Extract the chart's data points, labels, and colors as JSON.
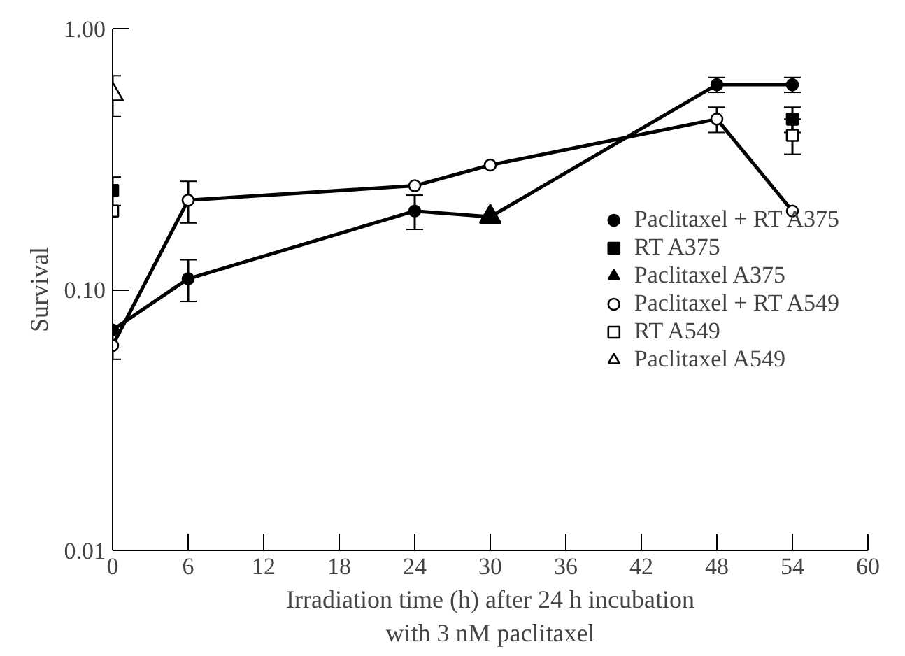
{
  "chart_data": {
    "type": "line",
    "xlabel": "Irradiation time (h) after 24 h incubation\nwith 3 nM paclitaxel",
    "ylabel": "Survival",
    "log": "y",
    "xlim": [
      0,
      60
    ],
    "xticks": [
      0,
      6,
      12,
      18,
      24,
      30,
      36,
      42,
      48,
      54,
      60
    ],
    "ylim": [
      0.01,
      1
    ],
    "yticks": [
      {
        "value": 0.01,
        "label": "0.01"
      },
      {
        "value": 0.1,
        "label": "0.10"
      },
      {
        "value": 1,
        "label": "1.00"
      }
    ],
    "grid": false,
    "legend": "right",
    "series": [
      {
        "name": "Paclitaxel + RT A375",
        "marker": "circle",
        "color": "#000000",
        "x": [
          0,
          6,
          24,
          30,
          48,
          54
        ],
        "values": [
          0.07,
          0.11,
          0.2,
          0.19,
          0.61,
          0.61
        ],
        "errors": [
          null,
          0.02,
          0.03,
          null,
          0.04,
          0.04
        ]
      },
      {
        "name": "RT A375",
        "type": "scatter",
        "marker": "square",
        "color": "#000000",
        "x": [
          0,
          54
        ],
        "values": [
          0.24,
          0.45
        ],
        "errors": [
          0.03,
          0.05
        ]
      },
      {
        "name": "Paclitaxel A375",
        "type": "scatter",
        "marker": "triangle",
        "color": "#000000",
        "x": [
          30
        ],
        "values": [
          0.19
        ],
        "errors": [
          null
        ]
      },
      {
        "name": "Paclitaxel + RT A549",
        "marker": "circle",
        "color": "#ffffff",
        "x": [
          0,
          6,
          24,
          30,
          48,
          54
        ],
        "values": [
          0.061,
          0.22,
          0.25,
          0.3,
          0.45,
          0.2
        ],
        "errors": [
          0.007,
          0.04,
          null,
          null,
          0.05,
          null
        ]
      },
      {
        "name": "RT A549",
        "type": "scatter",
        "marker": "square",
        "color": "#ffffff",
        "x": [
          0,
          54
        ],
        "values": [
          0.2,
          0.39
        ],
        "errors": [
          null,
          0.06
        ]
      },
      {
        "name": "Paclitaxel A549",
        "type": "scatter",
        "marker": "triangle",
        "color": "#ffffff",
        "x": [
          0
        ],
        "values": [
          0.56
        ],
        "errors": [
          0.1
        ]
      }
    ]
  }
}
